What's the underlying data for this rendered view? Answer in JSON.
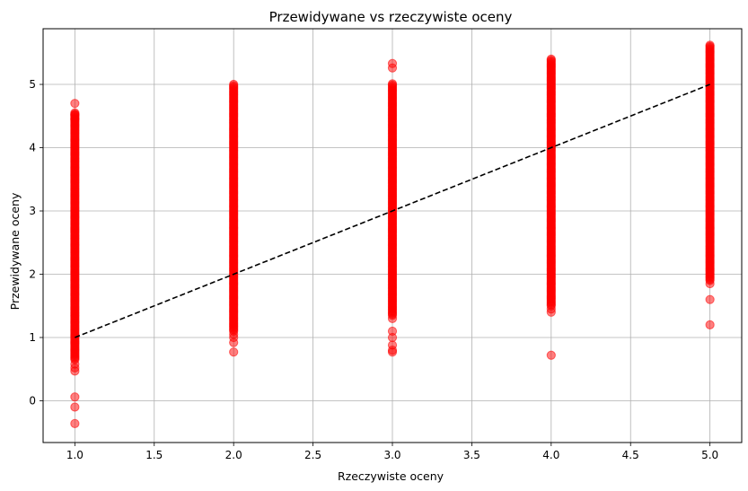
{
  "chart_data": {
    "type": "scatter",
    "title": "Przewidywane vs rzeczywiste oceny",
    "xlabel": "Rzeczywiste oceny",
    "ylabel": "Przewidywane oceny",
    "xlim": [
      0.8,
      5.2
    ],
    "ylim": [
      -0.66,
      5.88
    ],
    "xticks": [
      "1.0",
      "1.5",
      "2.0",
      "2.5",
      "3.0",
      "3.5",
      "4.0",
      "4.5",
      "5.0"
    ],
    "yticks": [
      "0",
      "1",
      "2",
      "3",
      "4",
      "5"
    ],
    "grid": true,
    "point_color": "#ff0000",
    "reference_line": {
      "style": "dashed",
      "color": "#000000",
      "from": [
        1,
        1
      ],
      "to": [
        5,
        5
      ]
    },
    "series": [
      {
        "x": 1,
        "band_min": 0.65,
        "band_max": 4.55,
        "outliers": [
          4.7,
          4.52,
          4.45,
          0.58,
          0.52,
          0.47,
          0.06,
          -0.1,
          -0.36
        ]
      },
      {
        "x": 2,
        "band_min": 1.1,
        "band_max": 5.0,
        "outliers": [
          1.05,
          1.0,
          0.92,
          0.77
        ]
      },
      {
        "x": 3,
        "band_min": 1.35,
        "band_max": 5.02,
        "outliers": [
          5.33,
          5.26,
          1.3,
          1.1,
          1.0,
          0.88,
          0.8,
          0.77
        ]
      },
      {
        "x": 4,
        "band_min": 1.5,
        "band_max": 5.4,
        "outliers": [
          1.45,
          1.4,
          0.72
        ]
      },
      {
        "x": 5,
        "band_min": 1.9,
        "band_max": 5.62,
        "outliers": [
          1.85,
          1.6,
          1.2
        ]
      }
    ]
  }
}
